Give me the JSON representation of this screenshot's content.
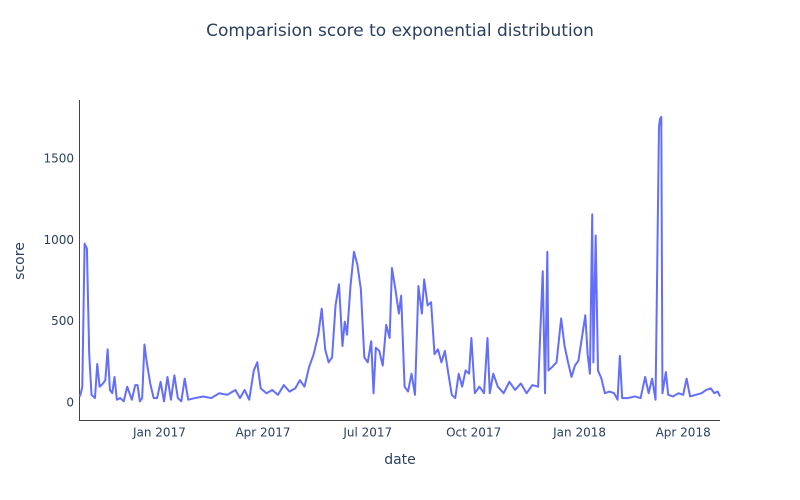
{
  "chart_data": {
    "type": "line",
    "title": "Comparision score to exponential distribution",
    "x_label": "date",
    "y_label": "score",
    "color": "#636efa",
    "x": [
      "2016-10-24",
      "2016-10-26",
      "2016-10-28",
      "2016-10-30",
      "2016-11-01",
      "2016-11-03",
      "2016-11-06",
      "2016-11-08",
      "2016-11-10",
      "2016-11-13",
      "2016-11-15",
      "2016-11-17",
      "2016-11-19",
      "2016-11-21",
      "2016-11-23",
      "2016-11-25",
      "2016-11-28",
      "2016-12-01",
      "2016-12-04",
      "2016-12-06",
      "2016-12-08",
      "2016-12-11",
      "2016-12-13",
      "2016-12-15",
      "2016-12-17",
      "2016-12-19",
      "2016-12-21",
      "2016-12-24",
      "2016-12-27",
      "2016-12-30",
      "2017-01-02",
      "2017-01-05",
      "2017-01-08",
      "2017-01-11",
      "2017-01-14",
      "2017-01-17",
      "2017-01-20",
      "2017-01-23",
      "2017-01-26",
      "2017-02-01",
      "2017-02-08",
      "2017-02-15",
      "2017-02-22",
      "2017-03-01",
      "2017-03-08",
      "2017-03-12",
      "2017-03-16",
      "2017-03-20",
      "2017-03-24",
      "2017-03-27",
      "2017-03-30",
      "2017-04-04",
      "2017-04-09",
      "2017-04-14",
      "2017-04-19",
      "2017-04-24",
      "2017-04-29",
      "2017-05-03",
      "2017-05-07",
      "2017-05-11",
      "2017-05-15",
      "2017-05-19",
      "2017-05-22",
      "2017-05-25",
      "2017-05-28",
      "2017-05-31",
      "2017-06-03",
      "2017-06-06",
      "2017-06-09",
      "2017-06-11",
      "2017-06-13",
      "2017-06-16",
      "2017-06-19",
      "2017-06-22",
      "2017-06-25",
      "2017-06-28",
      "2017-07-01",
      "2017-07-04",
      "2017-07-06",
      "2017-07-08",
      "2017-07-11",
      "2017-07-14",
      "2017-07-17",
      "2017-07-20",
      "2017-07-22",
      "2017-07-25",
      "2017-07-28",
      "2017-07-30",
      "2017-08-02",
      "2017-08-05",
      "2017-08-08",
      "2017-08-11",
      "2017-08-14",
      "2017-08-17",
      "2017-08-19",
      "2017-08-22",
      "2017-08-25",
      "2017-08-28",
      "2017-08-31",
      "2017-09-03",
      "2017-09-06",
      "2017-09-09",
      "2017-09-12",
      "2017-09-15",
      "2017-09-18",
      "2017-09-21",
      "2017-09-24",
      "2017-09-27",
      "2017-09-29",
      "2017-10-02",
      "2017-10-06",
      "2017-10-10",
      "2017-10-13",
      "2017-10-15",
      "2017-10-18",
      "2017-10-22",
      "2017-10-27",
      "2017-11-01",
      "2017-11-06",
      "2017-11-11",
      "2017-11-16",
      "2017-11-21",
      "2017-11-26",
      "2017-11-30",
      "2017-12-02",
      "2017-12-04",
      "2017-12-05",
      "2017-12-08",
      "2017-12-12",
      "2017-12-16",
      "2017-12-19",
      "2017-12-22",
      "2017-12-25",
      "2017-12-28",
      "2017-12-31",
      "2018-01-03",
      "2018-01-06",
      "2018-01-08",
      "2018-01-10",
      "2018-01-12",
      "2018-01-13",
      "2018-01-15",
      "2018-01-17",
      "2018-01-20",
      "2018-01-23",
      "2018-01-27",
      "2018-01-31",
      "2018-02-03",
      "2018-02-05",
      "2018-02-07",
      "2018-02-12",
      "2018-02-18",
      "2018-02-23",
      "2018-02-27",
      "2018-03-02",
      "2018-03-05",
      "2018-03-08",
      "2018-03-11",
      "2018-03-12",
      "2018-03-13",
      "2018-03-14",
      "2018-03-17",
      "2018-03-19",
      "2018-03-23",
      "2018-03-28",
      "2018-04-01",
      "2018-04-04",
      "2018-04-07",
      "2018-04-12",
      "2018-04-17",
      "2018-04-21",
      "2018-04-25",
      "2018-04-28",
      "2018-05-01",
      "2018-05-03"
    ],
    "values": [
      40,
      100,
      980,
      950,
      300,
      50,
      30,
      240,
      100,
      120,
      140,
      330,
      80,
      60,
      160,
      20,
      30,
      10,
      100,
      60,
      20,
      110,
      110,
      10,
      30,
      360,
      250,
      120,
      30,
      30,
      130,
      10,
      160,
      20,
      170,
      30,
      10,
      150,
      20,
      30,
      40,
      30,
      60,
      50,
      80,
      30,
      80,
      20,
      200,
      250,
      90,
      60,
      80,
      50,
      110,
      70,
      90,
      140,
      100,
      220,
      300,
      420,
      580,
      330,
      250,
      280,
      600,
      730,
      350,
      500,
      420,
      720,
      930,
      850,
      700,
      280,
      250,
      380,
      60,
      340,
      320,
      230,
      480,
      400,
      830,
      700,
      550,
      660,
      100,
      70,
      180,
      50,
      720,
      550,
      760,
      600,
      620,
      300,
      330,
      250,
      320,
      180,
      50,
      30,
      180,
      100,
      200,
      180,
      400,
      60,
      100,
      60,
      400,
      60,
      180,
      100,
      60,
      130,
      80,
      120,
      60,
      110,
      100,
      810,
      60,
      930,
      200,
      220,
      250,
      520,
      350,
      250,
      160,
      230,
      260,
      400,
      540,
      300,
      180,
      1160,
      250,
      1030,
      200,
      150,
      60,
      70,
      60,
      20,
      290,
      30,
      30,
      40,
      30,
      160,
      60,
      150,
      20,
      1700,
      1750,
      1760,
      60,
      190,
      50,
      40,
      60,
      50,
      150,
      40,
      50,
      60,
      80,
      90,
      60,
      70,
      40
    ],
    "xlim": [
      "2016-10-24",
      "2018-05-03"
    ],
    "xticks": [
      {
        "value": "2017-01-01",
        "label": "Jan 2017"
      },
      {
        "value": "2017-04-01",
        "label": "Apr 2017"
      },
      {
        "value": "2017-07-01",
        "label": "Jul 2017"
      },
      {
        "value": "2017-10-01",
        "label": "Oct 2017"
      },
      {
        "value": "2018-01-01",
        "label": "Jan 2018"
      },
      {
        "value": "2018-04-01",
        "label": "Apr 2018"
      }
    ],
    "ylim": [
      -111,
      1864
    ],
    "yticks": [
      0,
      500,
      1000,
      1500
    ]
  }
}
